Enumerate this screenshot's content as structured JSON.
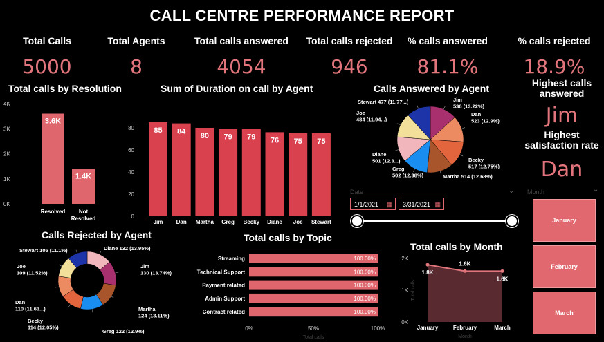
{
  "title": "CALL CENTRE PERFORMANCE REPORT",
  "kpis": [
    {
      "label": "Total Calls",
      "value": "5000"
    },
    {
      "label": "Total Agents",
      "value": "8"
    },
    {
      "label": "Total calls answered",
      "value": "4054"
    },
    {
      "label": "Total calls rejected",
      "value": "946"
    },
    {
      "label": "% calls answered",
      "value": "81.1%"
    },
    {
      "label": "% calls rejected",
      "value": "18.9%"
    }
  ],
  "highlights": {
    "highest_answered_label": "Highest calls answered",
    "highest_answered_value": "Jim",
    "highest_satisfaction_label": "Highest satisfaction rate",
    "highest_satisfaction_value": "Dan"
  },
  "filters": {
    "date_label": "Date",
    "start_date": "1/1/2021",
    "end_date": "3/31/2021",
    "month_label": "Month",
    "months": [
      "January",
      "February",
      "March"
    ]
  },
  "colors": {
    "accent": "#e2757c",
    "bar": "#d9414f",
    "bar_light": "#e0666e"
  },
  "chart_data": [
    {
      "id": "resolution",
      "type": "bar",
      "title": "Total calls by Resolution",
      "categories": [
        "Resolved",
        "Not\nResolved"
      ],
      "values": [
        3600,
        1400
      ],
      "data_labels": [
        "3.6K",
        "1.4K"
      ],
      "yticks": [
        "0K",
        "1K",
        "2K",
        "3K",
        "4K"
      ],
      "ylim": [
        0,
        4000
      ]
    },
    {
      "id": "duration",
      "type": "bar",
      "title": "Sum of Duration on call by Agent",
      "categories": [
        "Jim",
        "Dan",
        "Martha",
        "Greg",
        "Becky",
        "Diane",
        "Joe",
        "Stewart"
      ],
      "values": [
        85,
        84,
        80,
        79,
        79,
        76,
        75,
        75
      ],
      "yticks": [
        "0",
        "20",
        "40",
        "60",
        "80"
      ],
      "ylim": [
        0,
        90
      ]
    },
    {
      "id": "answered",
      "type": "pie",
      "title": "Calls Answered by Agent",
      "slices": [
        {
          "name": "Jim",
          "value": 536,
          "label": "Jim\n536 (13.22%)",
          "color": "#a8306e"
        },
        {
          "name": "Dan",
          "value": 523,
          "label": "Dan\n523 (12.9%)",
          "color": "#ec8a62"
        },
        {
          "name": "Becky",
          "value": 517,
          "label": "Becky\n517 (12.75%)",
          "color": "#e2653d"
        },
        {
          "name": "Martha",
          "value": 514,
          "label": "Martha 514 (12.68%)",
          "color": "#a8552b"
        },
        {
          "name": "Greg",
          "value": 502,
          "label": "Greg\n502 (12.38%)",
          "color": "#1a8ef0"
        },
        {
          "name": "Diane",
          "value": 501,
          "label": "Diane\n501 (12.3...)",
          "color": "#f0b6bb"
        },
        {
          "name": "Joe",
          "value": 484,
          "label": "Joe\n484 (11.94...)",
          "color": "#f2e09a"
        },
        {
          "name": "Stewart",
          "value": 477,
          "label": "Stewart 477 (11.77...)",
          "color": "#1c34a8"
        }
      ]
    },
    {
      "id": "rejected",
      "type": "pie",
      "title": "Calls Rejected by Agent",
      "slices": [
        {
          "name": "Diane",
          "value": 132,
          "label": "Diane 132 (13.95%)",
          "color": "#f0b6bb"
        },
        {
          "name": "Jim",
          "value": 130,
          "label": "Jim\n130 (13.74%)",
          "color": "#a8306e"
        },
        {
          "name": "Martha",
          "value": 124,
          "label": "Martha\n124 (13.11%)",
          "color": "#a8552b"
        },
        {
          "name": "Greg",
          "value": 122,
          "label": "Greg 122 (12.9%)",
          "color": "#1a8ef0"
        },
        {
          "name": "Becky",
          "value": 114,
          "label": "Becky\n114 (12.05%)",
          "color": "#e2653d"
        },
        {
          "name": "Dan",
          "value": 110,
          "label": "Dan\n110 (11.63...)",
          "color": "#ec8a62"
        },
        {
          "name": "Joe",
          "value": 109,
          "label": "Joe\n109 (11.52%)",
          "color": "#f2e09a"
        },
        {
          "name": "Stewart",
          "value": 105,
          "label": "Stewart 105 (11.1%)",
          "color": "#1c34a8"
        }
      ]
    },
    {
      "id": "topic",
      "type": "bar",
      "title": "Total calls by Topic",
      "categories": [
        "Streaming",
        "Technical Support",
        "Payment related",
        "Admin Support",
        "Contract related"
      ],
      "values": [
        100,
        100,
        100,
        100,
        100
      ],
      "data_labels": [
        "100.00%",
        "100.00%",
        "100.00%",
        "100.00%",
        "100.00%"
      ],
      "xticks": [
        "0%",
        "50%",
        "100%"
      ],
      "xlabel": "Total calls",
      "xlim": [
        0,
        100
      ]
    },
    {
      "id": "month",
      "type": "area",
      "title": "Total calls by Month",
      "categories": [
        "January",
        "February",
        "March"
      ],
      "values": [
        1800,
        1600,
        1600
      ],
      "data_labels": [
        "1.8K",
        "1.6K",
        "1.6K"
      ],
      "yticks": [
        "0K",
        "1K",
        "2K"
      ],
      "ylabel": "Total calls",
      "xlabel": "Month",
      "ylim": [
        0,
        2000
      ]
    }
  ]
}
